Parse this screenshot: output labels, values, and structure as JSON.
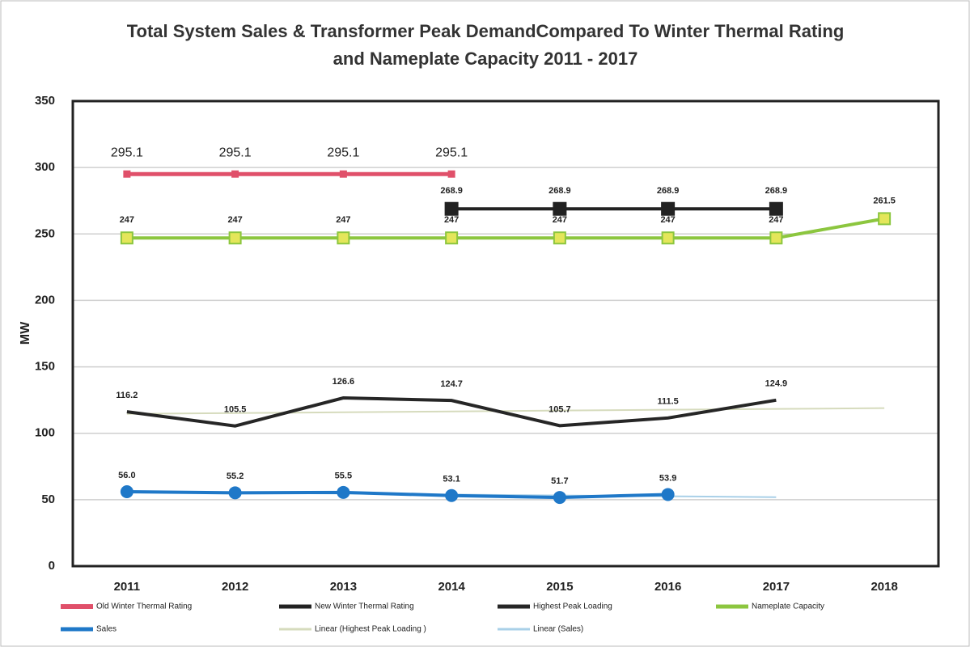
{
  "chart_data": {
    "type": "line",
    "title": "Total System Sales & Transformer Peak DemandCompared To Winter Thermal Rating  and Nameplate Capacity  2011 - 2017",
    "y_label": "MW",
    "categories": [
      "2011",
      "2012",
      "2013",
      "2014",
      "2015",
      "2016",
      "2017",
      "2018"
    ],
    "ylim": [
      0,
      350
    ],
    "yticks": [
      0,
      50,
      100,
      150,
      200,
      250,
      300,
      350
    ],
    "grid": true,
    "legend": "bottom",
    "series": [
      {
        "name": "Old Winter Thermal Rating",
        "color": "#e0506a",
        "values": [
          295.1,
          295.1,
          295.1,
          295.1,
          null,
          null,
          null,
          null
        ]
      },
      {
        "name": "New Winter Thermal Rating",
        "color": "#222222",
        "values": [
          null,
          null,
          null,
          268.9,
          268.9,
          268.9,
          268.9,
          null
        ]
      },
      {
        "name": "Highest Peak Loading",
        "color": "#262626",
        "values": [
          116.2,
          105.5,
          126.6,
          124.7,
          105.7,
          111.5,
          124.9,
          null
        ]
      },
      {
        "name": "Nameplate Capacity",
        "color": "#8cc63f",
        "values": [
          247,
          247,
          247,
          247,
          247,
          247,
          247,
          261.5
        ]
      },
      {
        "name": "Sales",
        "color": "#1f78c8",
        "values": [
          56.0,
          55.2,
          55.5,
          53.1,
          51.7,
          53.9,
          null,
          null
        ],
        "value_labels": [
          "56.0",
          "55.2",
          "55.5",
          "53.1",
          "51.7",
          "53.9",
          null,
          null
        ]
      },
      {
        "name": "Linear (Highest Peak Loading )",
        "color": "#d6dbbd",
        "values": [
          114.6,
          115.2,
          115.8,
          116.4,
          117.1,
          117.7,
          118.3,
          118.9
        ]
      },
      {
        "name": "Linear (Sales)",
        "color": "#a9d0e8",
        "values": [
          55.9,
          55.2,
          54.6,
          53.9,
          53.2,
          52.6,
          51.9,
          null
        ]
      }
    ]
  }
}
